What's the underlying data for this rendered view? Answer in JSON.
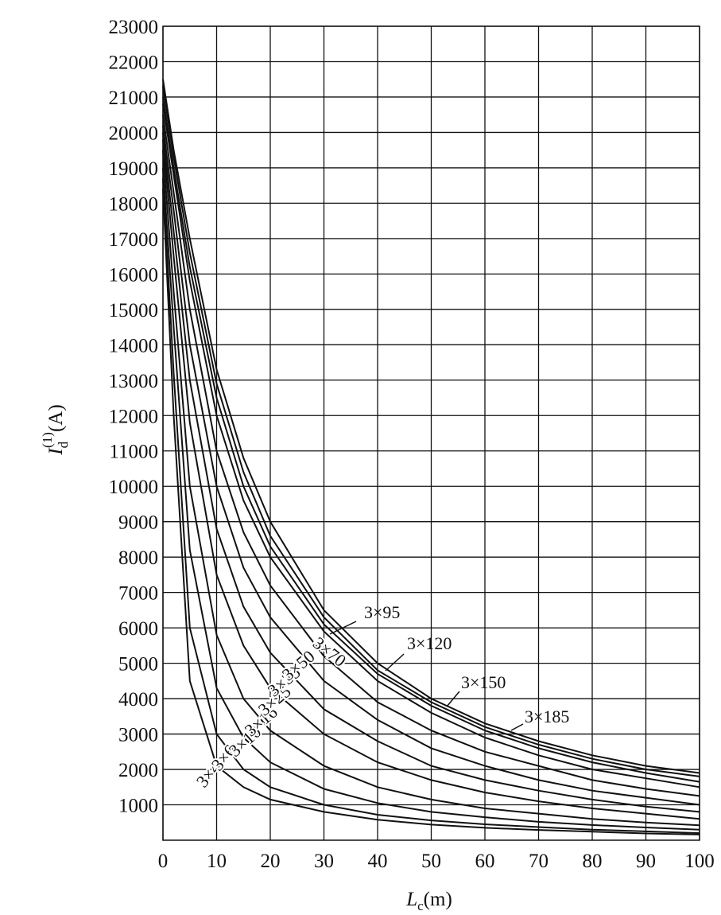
{
  "chart_data": {
    "type": "line",
    "xlabel": {
      "symbol": "L",
      "sub": "c",
      "unit": "(m)"
    },
    "ylabel": {
      "symbol": "I",
      "sub": "d",
      "sup": "(1)",
      "unit": "(A)"
    },
    "x": [
      0,
      2,
      5,
      10,
      15,
      20,
      30,
      40,
      50,
      60,
      70,
      80,
      90,
      100
    ],
    "color": "#111111",
    "grid": true,
    "xlim": [
      0,
      100
    ],
    "xticks": [
      0,
      10,
      20,
      30,
      40,
      50,
      60,
      70,
      80,
      90,
      100
    ],
    "ylim": [
      0,
      23000
    ],
    "yticks": [
      1000,
      2000,
      3000,
      4000,
      5000,
      6000,
      7000,
      8000,
      9000,
      10000,
      11000,
      12000,
      13000,
      14000,
      15000,
      16000,
      17000,
      18000,
      19000,
      20000,
      21000,
      22000,
      23000
    ],
    "series": [
      {
        "name": "3×4",
        "values": [
          18400,
          12000,
          4500,
          2100,
          1500,
          1150,
          800,
          580,
          440,
          350,
          290,
          240,
          190,
          160
        ]
      },
      {
        "name": "3×6",
        "values": [
          18700,
          13200,
          6000,
          3000,
          2000,
          1500,
          1000,
          720,
          560,
          450,
          370,
          300,
          250,
          200
        ]
      },
      {
        "name": "3×10",
        "values": [
          19000,
          14500,
          8200,
          4300,
          2900,
          2200,
          1450,
          1050,
          800,
          650,
          520,
          430,
          360,
          300
        ]
      },
      {
        "name": "3×16",
        "values": [
          19500,
          15500,
          10000,
          5800,
          4000,
          3100,
          2100,
          1500,
          1150,
          900,
          750,
          600,
          500,
          420
        ]
      },
      {
        "name": "3×25",
        "values": [
          19800,
          16500,
          11800,
          7500,
          5500,
          4300,
          3000,
          2200,
          1700,
          1350,
          1100,
          900,
          750,
          600
        ]
      },
      {
        "name": "3×35",
        "values": [
          20000,
          17200,
          13000,
          8800,
          6600,
          5300,
          3700,
          2800,
          2100,
          1700,
          1400,
          1150,
          950,
          800
        ]
      },
      {
        "name": "3×50",
        "values": [
          20200,
          17800,
          14000,
          10000,
          7700,
          6300,
          4500,
          3400,
          2600,
          2100,
          1700,
          1400,
          1200,
          1000
        ]
      },
      {
        "name": "3×70",
        "values": [
          20500,
          18300,
          15000,
          11000,
          8700,
          7200,
          5200,
          3900,
          3100,
          2500,
          2100,
          1700,
          1450,
          1250
        ]
      },
      {
        "name": "3×95",
        "values": [
          20800,
          18800,
          15800,
          12000,
          9600,
          8000,
          5900,
          4500,
          3600,
          2900,
          2400,
          2000,
          1750,
          1500
        ]
      },
      {
        "name": "3×120",
        "values": [
          21000,
          19000,
          16200,
          12500,
          10000,
          8300,
          6100,
          4700,
          3800,
          3100,
          2600,
          2200,
          1900,
          1650
        ]
      },
      {
        "name": "3×150",
        "values": [
          21300,
          19300,
          16600,
          12900,
          10400,
          8600,
          6300,
          4800,
          3900,
          3200,
          2700,
          2300,
          2000,
          1800
        ]
      },
      {
        "name": "3×185",
        "values": [
          21500,
          19500,
          17000,
          13300,
          10800,
          9000,
          6500,
          5000,
          4000,
          3300,
          2800,
          2400,
          2100,
          1900
        ]
      }
    ]
  }
}
